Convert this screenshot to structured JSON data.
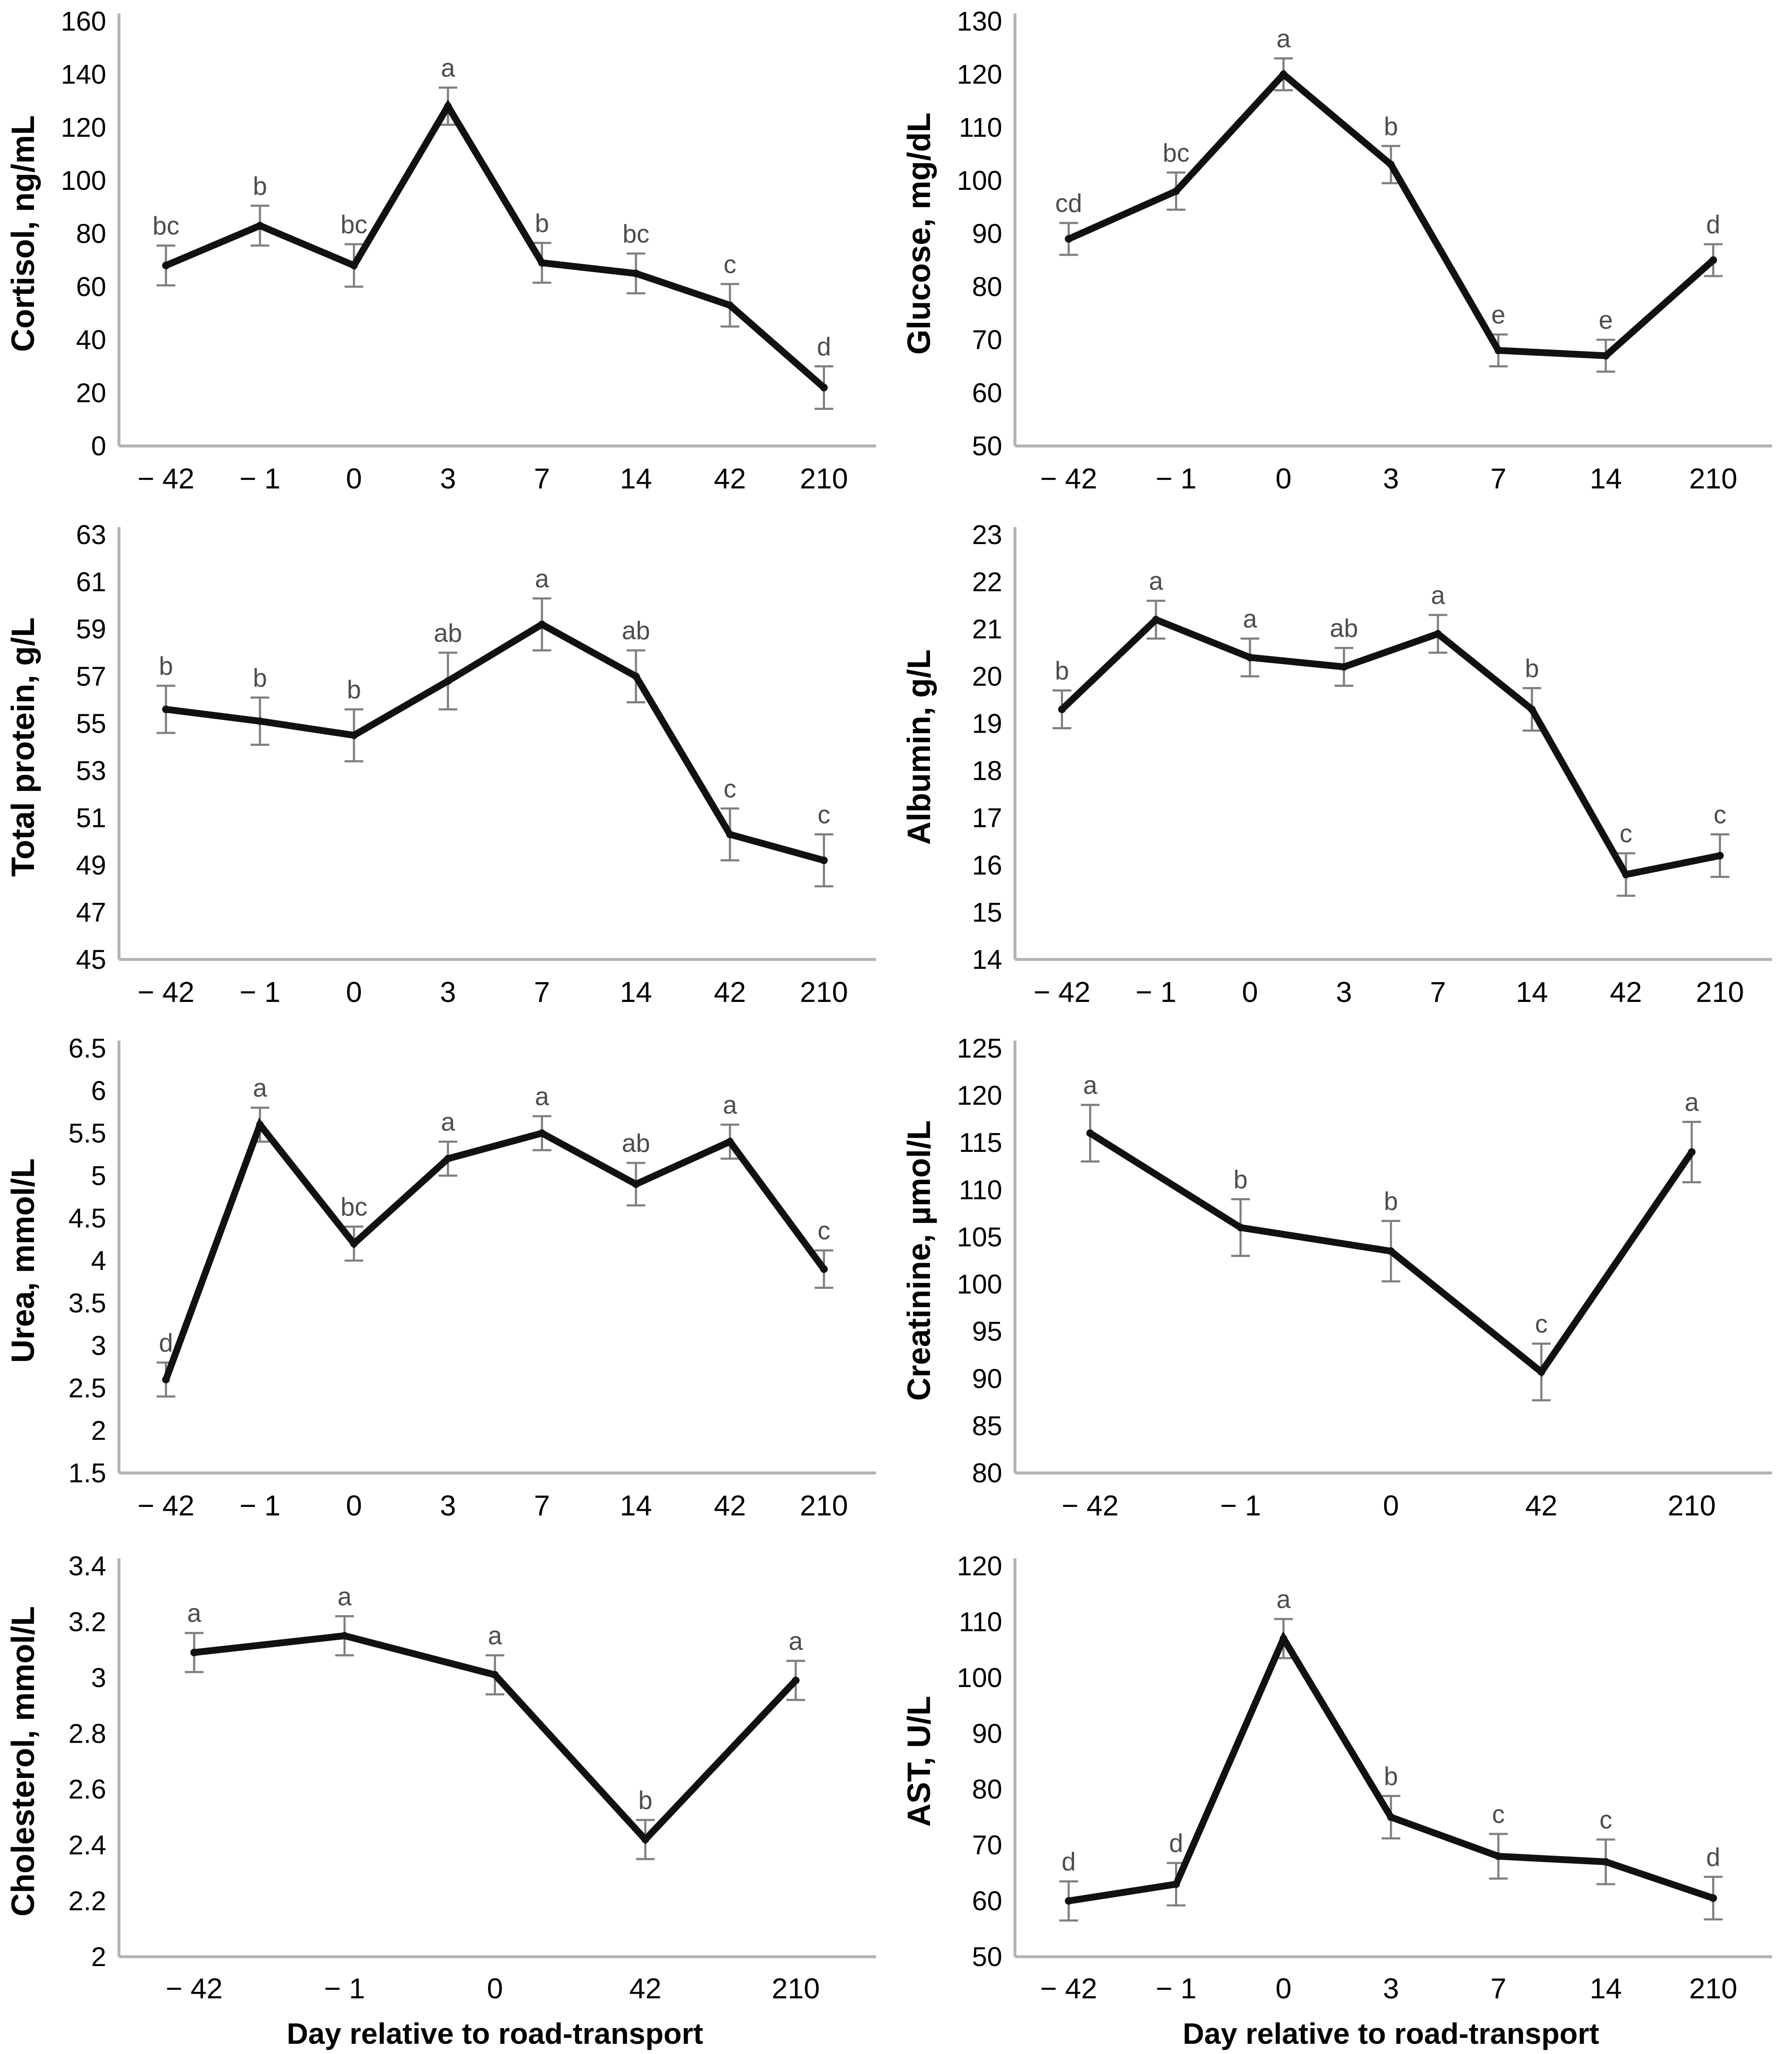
{
  "figure": {
    "xlabel": "Day relative to road-transport",
    "colors": {
      "line": "#111111",
      "error_bar": "#7f7f7f",
      "letter": "#4d4d4d",
      "axis": "#b3b3b3",
      "tick_text": "#000000",
      "background": "#ffffff"
    }
  },
  "chart_data": [
    {
      "type": "line",
      "ylabel": "Cortisol, ng/mL",
      "xlabel": "",
      "categories": [
        "− 42",
        "− 1",
        "0",
        "3",
        "7",
        "14",
        "42",
        "210"
      ],
      "values": [
        68,
        83,
        68,
        128,
        69,
        65,
        53,
        22
      ],
      "errors": [
        7.5,
        7.5,
        8,
        7,
        7.5,
        7.5,
        8,
        8
      ],
      "letters": [
        "bc",
        "b",
        "bc",
        "a",
        "b",
        "bc",
        "c",
        "d"
      ],
      "ylim": [
        0,
        160
      ],
      "y_ticks": [
        "160",
        "140",
        "120",
        "100",
        "80",
        "60",
        "40",
        "20",
        "0"
      ],
      "grid": false,
      "legend": "none"
    },
    {
      "type": "line",
      "ylabel": "Glucose, mg/dL",
      "xlabel": "",
      "categories": [
        "− 42",
        "− 1",
        "0",
        "3",
        "7",
        "14",
        "210"
      ],
      "values": [
        89,
        98,
        120,
        103,
        68,
        67,
        85
      ],
      "errors": [
        3,
        3.5,
        3,
        3.5,
        3,
        3,
        3
      ],
      "letters": [
        "cd",
        "bc",
        "a",
        "b",
        "e",
        "e",
        "d"
      ],
      "ylim": [
        50,
        130
      ],
      "y_ticks": [
        "130",
        "120",
        "110",
        "100",
        "90",
        "80",
        "70",
        "60",
        "50"
      ],
      "grid": false,
      "legend": "none"
    },
    {
      "type": "line",
      "ylabel": "Total protein, g/L",
      "xlabel": "",
      "categories": [
        "− 42",
        "− 1",
        "0",
        "3",
        "7",
        "14",
        "42",
        "210"
      ],
      "values": [
        55.6,
        55.1,
        54.5,
        56.8,
        59.2,
        57.0,
        50.3,
        49.2
      ],
      "errors": [
        1.0,
        1.0,
        1.1,
        1.2,
        1.1,
        1.1,
        1.1,
        1.1
      ],
      "letters": [
        "b",
        "b",
        "b",
        "ab",
        "a",
        "ab",
        "c",
        "c"
      ],
      "ylim": [
        45,
        63
      ],
      "y_ticks": [
        "63",
        "61",
        "59",
        "57",
        "55",
        "53",
        "51",
        "49",
        "47",
        "45"
      ],
      "grid": false,
      "legend": "none"
    },
    {
      "type": "line",
      "ylabel": "Albumin, g/L",
      "xlabel": "",
      "categories": [
        "− 42",
        "− 1",
        "0",
        "3",
        "7",
        "14",
        "42",
        "210"
      ],
      "values": [
        19.3,
        21.2,
        20.4,
        20.2,
        20.9,
        19.3,
        15.8,
        16.2
      ],
      "errors": [
        0.4,
        0.4,
        0.4,
        0.4,
        0.4,
        0.45,
        0.45,
        0.45
      ],
      "letters": [
        "b",
        "a",
        "a",
        "ab",
        "a",
        "b",
        "c",
        "c"
      ],
      "ylim": [
        14,
        23
      ],
      "y_ticks": [
        "23",
        "22",
        "21",
        "20",
        "19",
        "18",
        "17",
        "16",
        "15",
        "14"
      ],
      "grid": false,
      "legend": "none"
    },
    {
      "type": "line",
      "ylabel": "Urea, mmol/L",
      "xlabel": "",
      "categories": [
        "− 42",
        "− 1",
        "0",
        "3",
        "7",
        "14",
        "42",
        "210"
      ],
      "values": [
        2.6,
        5.6,
        4.2,
        5.2,
        5.5,
        4.9,
        5.4,
        3.9
      ],
      "errors": [
        0.2,
        0.2,
        0.2,
        0.2,
        0.2,
        0.25,
        0.2,
        0.22
      ],
      "letters": [
        "d",
        "a",
        "bc",
        "a",
        "a",
        "ab",
        "a",
        "c"
      ],
      "ylim": [
        1.5,
        6.5
      ],
      "y_ticks": [
        "6.5",
        "6",
        "5.5",
        "5",
        "4.5",
        "4",
        "3.5",
        "3",
        "2.5",
        "2",
        "1.5"
      ],
      "grid": false,
      "legend": "none"
    },
    {
      "type": "line",
      "ylabel": "Creatinine, µmol/L",
      "xlabel": "",
      "categories": [
        "− 42",
        "− 1",
        "0",
        "42",
        "210"
      ],
      "values": [
        116,
        106,
        103.5,
        90.7,
        114
      ],
      "errors": [
        3,
        3,
        3.2,
        3,
        3.2
      ],
      "letters": [
        "a",
        "b",
        "b",
        "c",
        "a"
      ],
      "ylim": [
        80,
        125
      ],
      "y_ticks": [
        "125",
        "120",
        "115",
        "110",
        "105",
        "100",
        "95",
        "90",
        "85",
        "80"
      ],
      "grid": false,
      "legend": "none"
    },
    {
      "type": "line",
      "ylabel": "Cholesterol, mmol/L",
      "xlabel": "Day relative to road-transport",
      "categories": [
        "− 42",
        "− 1",
        "0",
        "42",
        "210"
      ],
      "values": [
        3.09,
        3.15,
        3.01,
        2.42,
        2.99
      ],
      "errors": [
        0.07,
        0.07,
        0.07,
        0.07,
        0.07
      ],
      "letters": [
        "a",
        "a",
        "a",
        "b",
        "a"
      ],
      "ylim": [
        2,
        3.4
      ],
      "y_ticks": [
        "3.4",
        "3.2",
        "3",
        "2.8",
        "2.6",
        "2.4",
        "2.2",
        "2"
      ],
      "grid": false,
      "legend": "none"
    },
    {
      "type": "line",
      "ylabel": "AST, U/L",
      "xlabel": "Day relative to road-transport",
      "categories": [
        "− 42",
        "− 1",
        "0",
        "3",
        "7",
        "14",
        "210"
      ],
      "values": [
        60,
        63,
        107,
        75,
        68,
        67,
        60.5
      ],
      "errors": [
        3.5,
        3.8,
        3.5,
        3.8,
        4,
        4,
        3.8
      ],
      "letters": [
        "d",
        "d",
        "a",
        "b",
        "c",
        "c",
        "d"
      ],
      "ylim": [
        50,
        120
      ],
      "y_ticks": [
        "120",
        "110",
        "100",
        "90",
        "80",
        "70",
        "60",
        "50"
      ],
      "grid": false,
      "legend": "none"
    }
  ]
}
